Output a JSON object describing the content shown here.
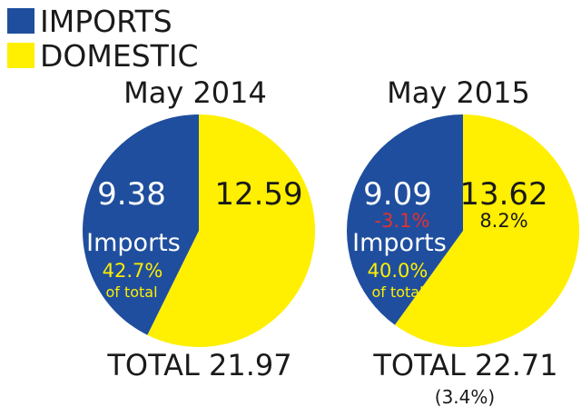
{
  "colors": {
    "imports": "#1f4e9e",
    "domestic": "#ffef00",
    "negative": "#e2312f",
    "pct_label": "#ffee00"
  },
  "legend": [
    {
      "label": "IMPORTS",
      "color": "#1f4e9e"
    },
    {
      "label": "DOMESTIC",
      "color": "#ffef00"
    }
  ],
  "chart_data": [
    {
      "type": "pie",
      "title": "May 2014",
      "slices": [
        {
          "name": "IMPORTS",
          "value": 9.38,
          "label": "9.38",
          "category_label": "Imports",
          "share_label": "42.7%",
          "share_sub": "of total"
        },
        {
          "name": "DOMESTIC",
          "value": 12.59,
          "label": "12.59"
        }
      ],
      "total_label": "TOTAL 21.97"
    },
    {
      "type": "pie",
      "title": "May 2015",
      "slices": [
        {
          "name": "IMPORTS",
          "value": 9.09,
          "label": "9.09",
          "change_label": "-3.1%",
          "category_label": "Imports",
          "share_label": "40.0%",
          "share_sub": "of total"
        },
        {
          "name": "DOMESTIC",
          "value": 13.62,
          "label": "13.62",
          "change_label": "8.2%"
        }
      ],
      "total_label": "TOTAL 22.71",
      "total_change": "(3.4%)"
    }
  ]
}
